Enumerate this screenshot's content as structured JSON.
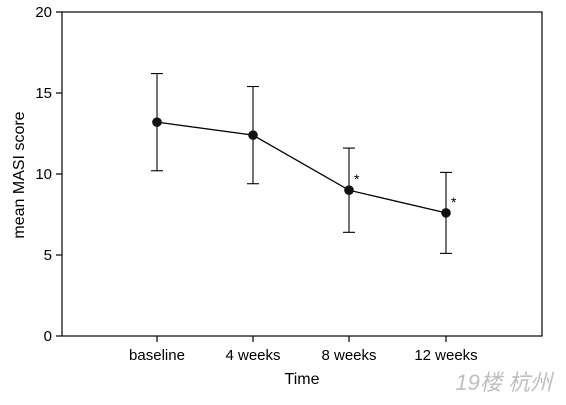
{
  "chart_data": {
    "type": "line",
    "xlabel": "Time",
    "ylabel": "mean MASI score",
    "categories": [
      "baseline",
      "4 weeks",
      "8 weeks",
      "12 weeks"
    ],
    "values": [
      13.2,
      12.4,
      9.0,
      7.6
    ],
    "error": [
      3.0,
      3.0,
      2.6,
      2.5
    ],
    "significance": [
      "",
      "",
      "*",
      "*"
    ],
    "ylim": [
      0,
      20
    ],
    "yticks": [
      0,
      5,
      10,
      15,
      20
    ],
    "grid": false
  },
  "watermark": "19楼 杭州"
}
